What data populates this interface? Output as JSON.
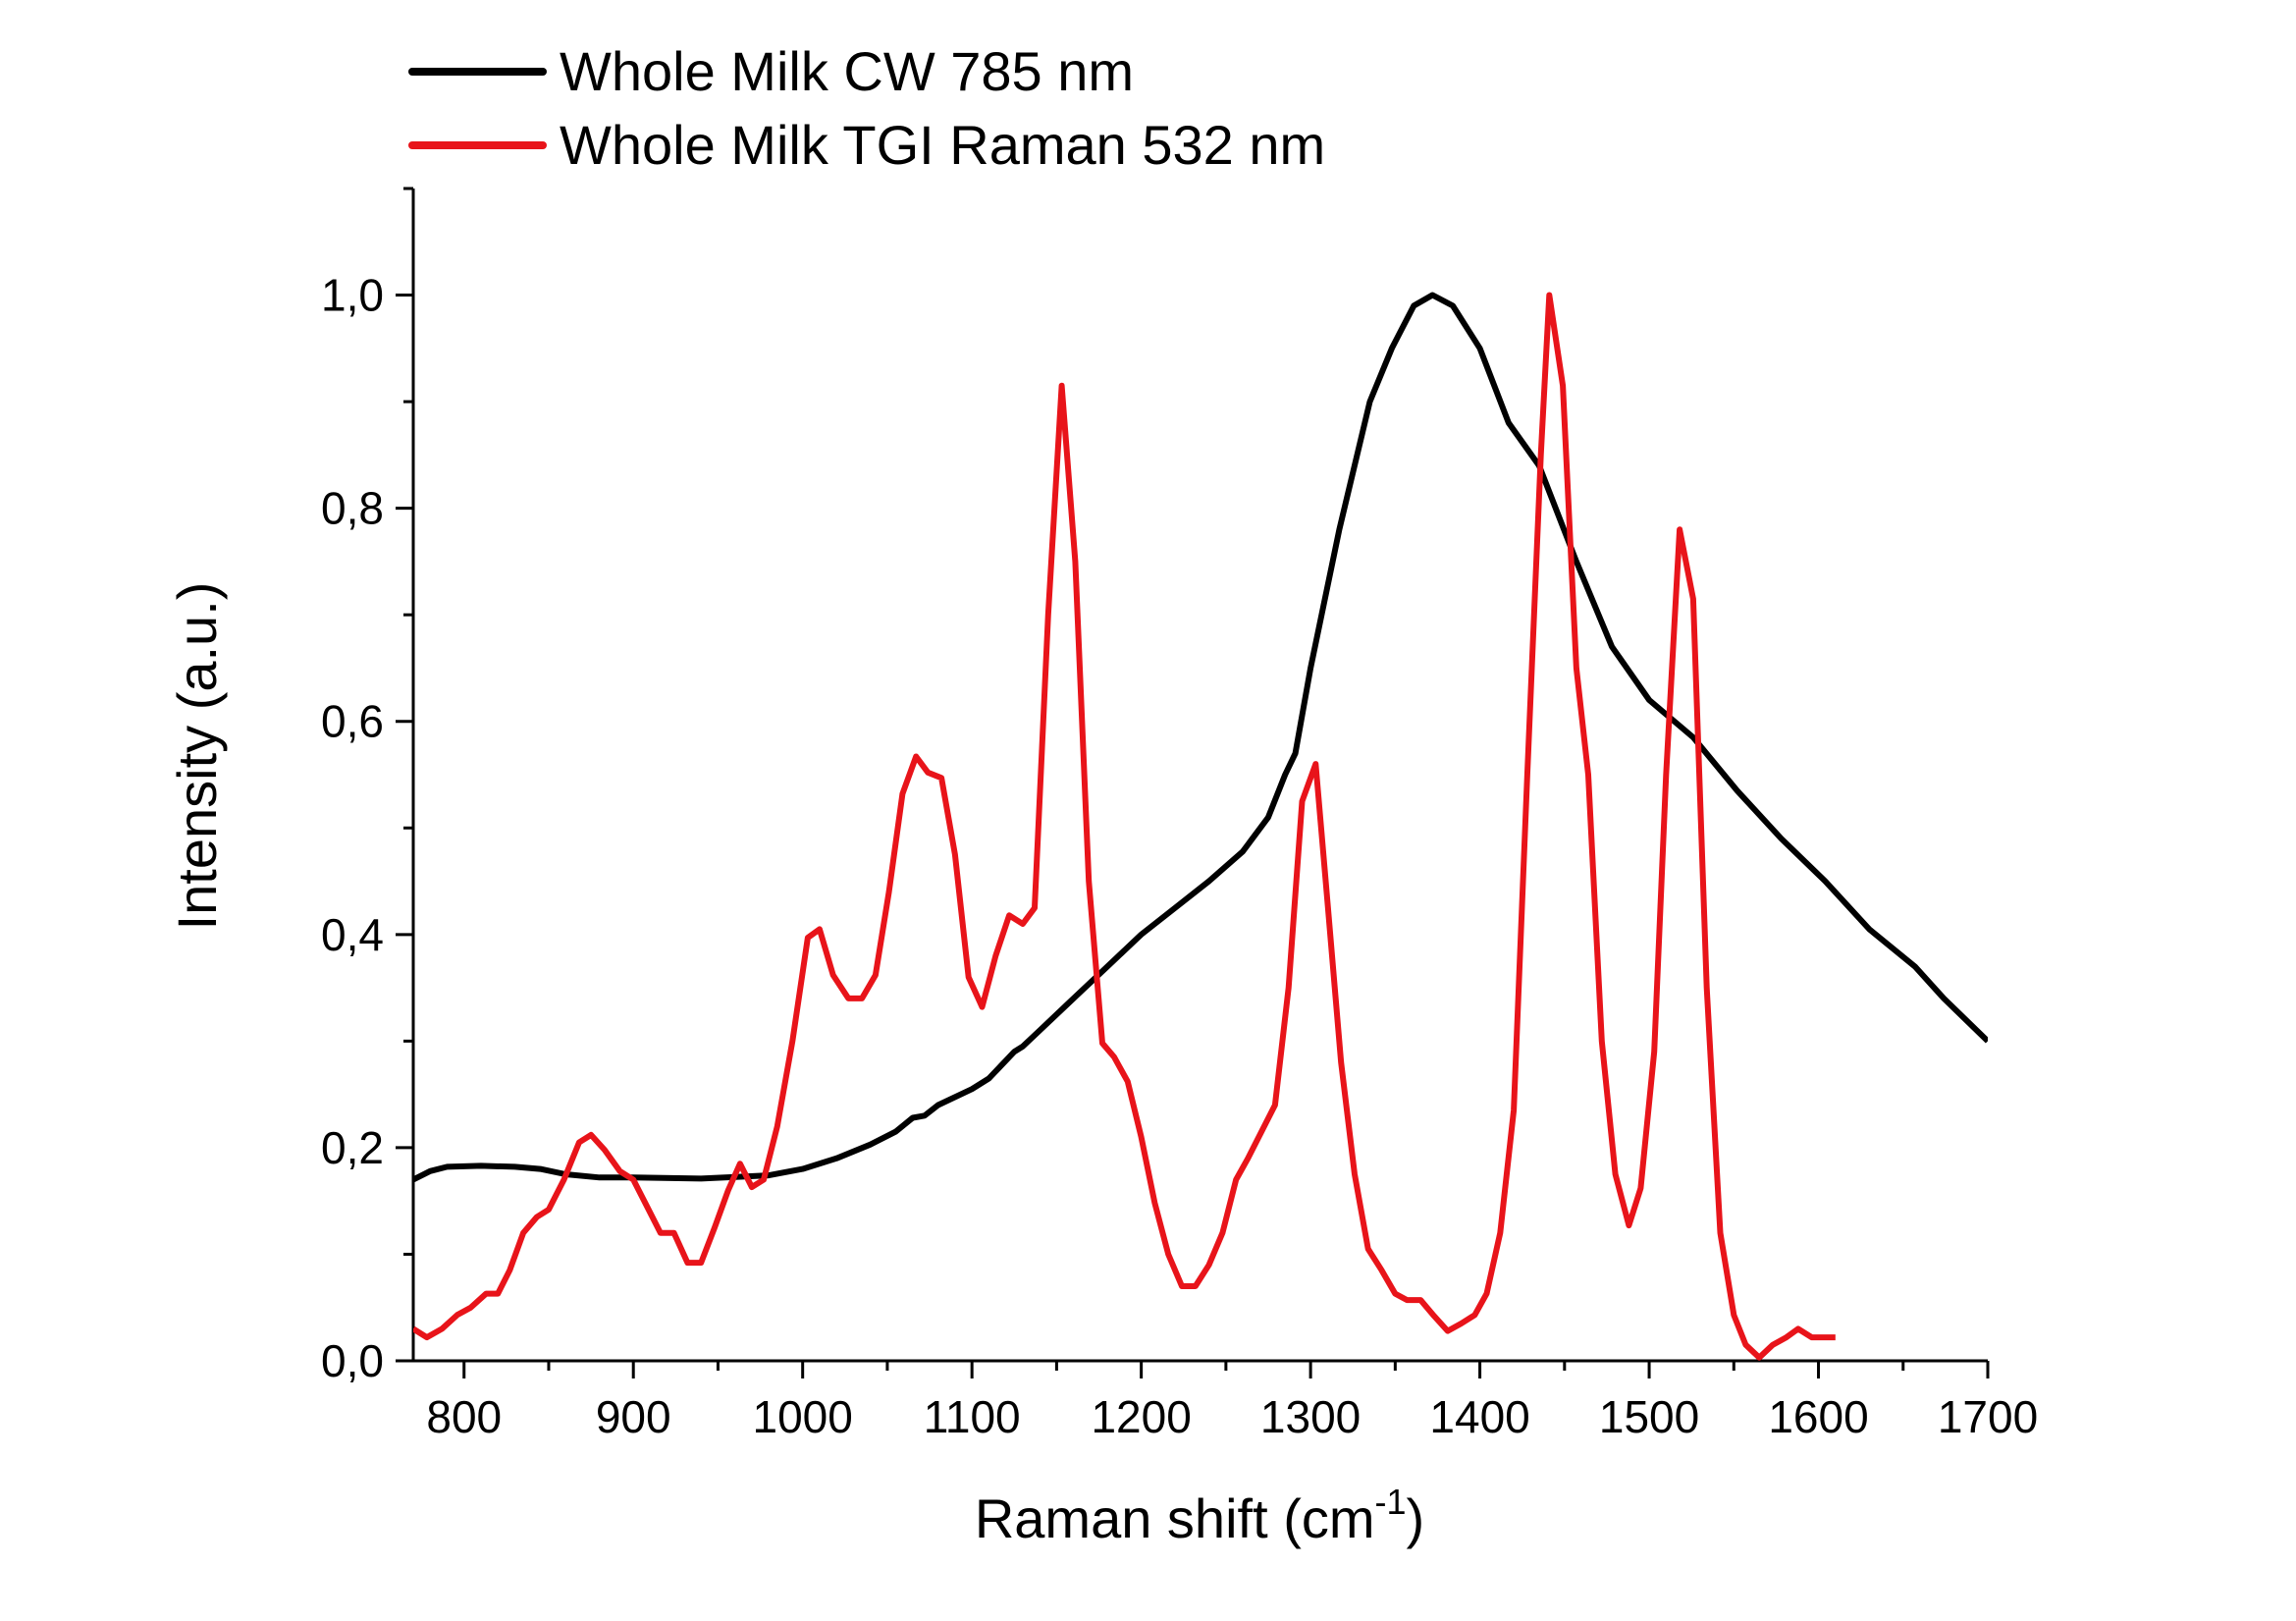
{
  "chart_data": {
    "type": "line",
    "xlabel": "Raman shift (cm",
    "xlabel_sup": "-1",
    "xlabel_close": ")",
    "ylabel": "Intensity (a.u.)",
    "xlim": [
      770,
      1700
    ],
    "ylim": [
      0,
      1.1
    ],
    "xticks": [
      800,
      900,
      1000,
      1100,
      1200,
      1300,
      1400,
      1500,
      1600,
      1700
    ],
    "yticks": [
      0,
      0.2,
      0.4,
      0.6,
      0.8,
      1.0
    ],
    "ytick_labels": [
      "0,0",
      "0,2",
      "0,4",
      "0,6",
      "0,8",
      "1,0"
    ],
    "grid": false,
    "legend_placement": "top-left (above plot)",
    "series": [
      {
        "name": "Whole Milk CW 785 nm",
        "color": "#000000",
        "x": [
          770,
          780,
          790,
          810,
          830,
          845,
          860,
          880,
          900,
          940,
          980,
          1000,
          1020,
          1040,
          1055,
          1065,
          1072,
          1080,
          1100,
          1110,
          1125,
          1130,
          1140,
          1160,
          1180,
          1200,
          1220,
          1240,
          1260,
          1275,
          1285,
          1291,
          1300,
          1317,
          1335,
          1348,
          1361,
          1372,
          1384,
          1400,
          1417,
          1435,
          1457,
          1478,
          1500,
          1526,
          1552,
          1578,
          1604,
          1630,
          1657,
          1674,
          1700
        ],
        "y": [
          0.17,
          0.178,
          0.182,
          0.183,
          0.182,
          0.18,
          0.175,
          0.172,
          0.172,
          0.171,
          0.174,
          0.18,
          0.19,
          0.203,
          0.215,
          0.228,
          0.23,
          0.24,
          0.255,
          0.265,
          0.29,
          0.295,
          0.31,
          0.34,
          0.37,
          0.4,
          0.425,
          0.45,
          0.478,
          0.51,
          0.55,
          0.57,
          0.65,
          0.78,
          0.9,
          0.95,
          0.99,
          1.0,
          0.99,
          0.95,
          0.88,
          0.84,
          0.75,
          0.67,
          0.62,
          0.585,
          0.535,
          0.49,
          0.45,
          0.405,
          0.37,
          0.34,
          0.3
        ]
      },
      {
        "name": "Whole Milk TGI Raman 532 nm",
        "color": "#e8141a",
        "x": [
          770,
          778,
          787,
          796,
          804,
          813,
          820,
          827,
          835,
          843,
          850,
          859,
          868,
          875,
          883,
          892,
          900,
          909,
          916,
          924,
          932,
          940,
          948,
          956,
          963,
          970,
          977,
          985,
          994,
          1003,
          1010,
          1018,
          1027,
          1035,
          1043,
          1051,
          1059,
          1067,
          1074,
          1082,
          1090,
          1098,
          1106,
          1114,
          1122,
          1130,
          1137,
          1145,
          1153,
          1161,
          1169,
          1177,
          1184,
          1192,
          1200,
          1208,
          1216,
          1224,
          1232,
          1240,
          1248,
          1256,
          1263,
          1271,
          1279,
          1287,
          1295,
          1303,
          1310,
          1318,
          1326,
          1334,
          1342,
          1350,
          1357,
          1365,
          1373,
          1381,
          1389,
          1397,
          1404,
          1412,
          1420,
          1428,
          1436,
          1441,
          1449,
          1457,
          1464,
          1472,
          1480,
          1488,
          1495,
          1503,
          1510,
          1518,
          1526,
          1534,
          1542,
          1550,
          1557,
          1565,
          1573,
          1581,
          1588,
          1596,
          1610
        ],
        "y": [
          0.03,
          0.022,
          0.03,
          0.043,
          0.05,
          0.063,
          0.063,
          0.085,
          0.12,
          0.135,
          0.142,
          0.17,
          0.205,
          0.212,
          0.198,
          0.178,
          0.17,
          0.142,
          0.12,
          0.12,
          0.092,
          0.092,
          0.125,
          0.16,
          0.185,
          0.163,
          0.17,
          0.22,
          0.3,
          0.397,
          0.405,
          0.362,
          0.34,
          0.34,
          0.362,
          0.44,
          0.532,
          0.567,
          0.552,
          0.547,
          0.475,
          0.36,
          0.332,
          0.38,
          0.418,
          0.41,
          0.425,
          0.7,
          0.915,
          0.75,
          0.45,
          0.298,
          0.285,
          0.262,
          0.21,
          0.148,
          0.1,
          0.07,
          0.07,
          0.09,
          0.12,
          0.17,
          0.19,
          0.215,
          0.24,
          0.35,
          0.525,
          0.56,
          0.43,
          0.28,
          0.175,
          0.105,
          0.085,
          0.063,
          0.057,
          0.057,
          0.042,
          0.028,
          0.035,
          0.043,
          0.063,
          0.12,
          0.235,
          0.55,
          0.85,
          1.0,
          0.915,
          0.65,
          0.55,
          0.3,
          0.175,
          0.127,
          0.162,
          0.29,
          0.55,
          0.78,
          0.715,
          0.35,
          0.12,
          0.043,
          0.015,
          0.003,
          0.015,
          0.022,
          0.03,
          0.022,
          0.022
        ]
      }
    ]
  }
}
